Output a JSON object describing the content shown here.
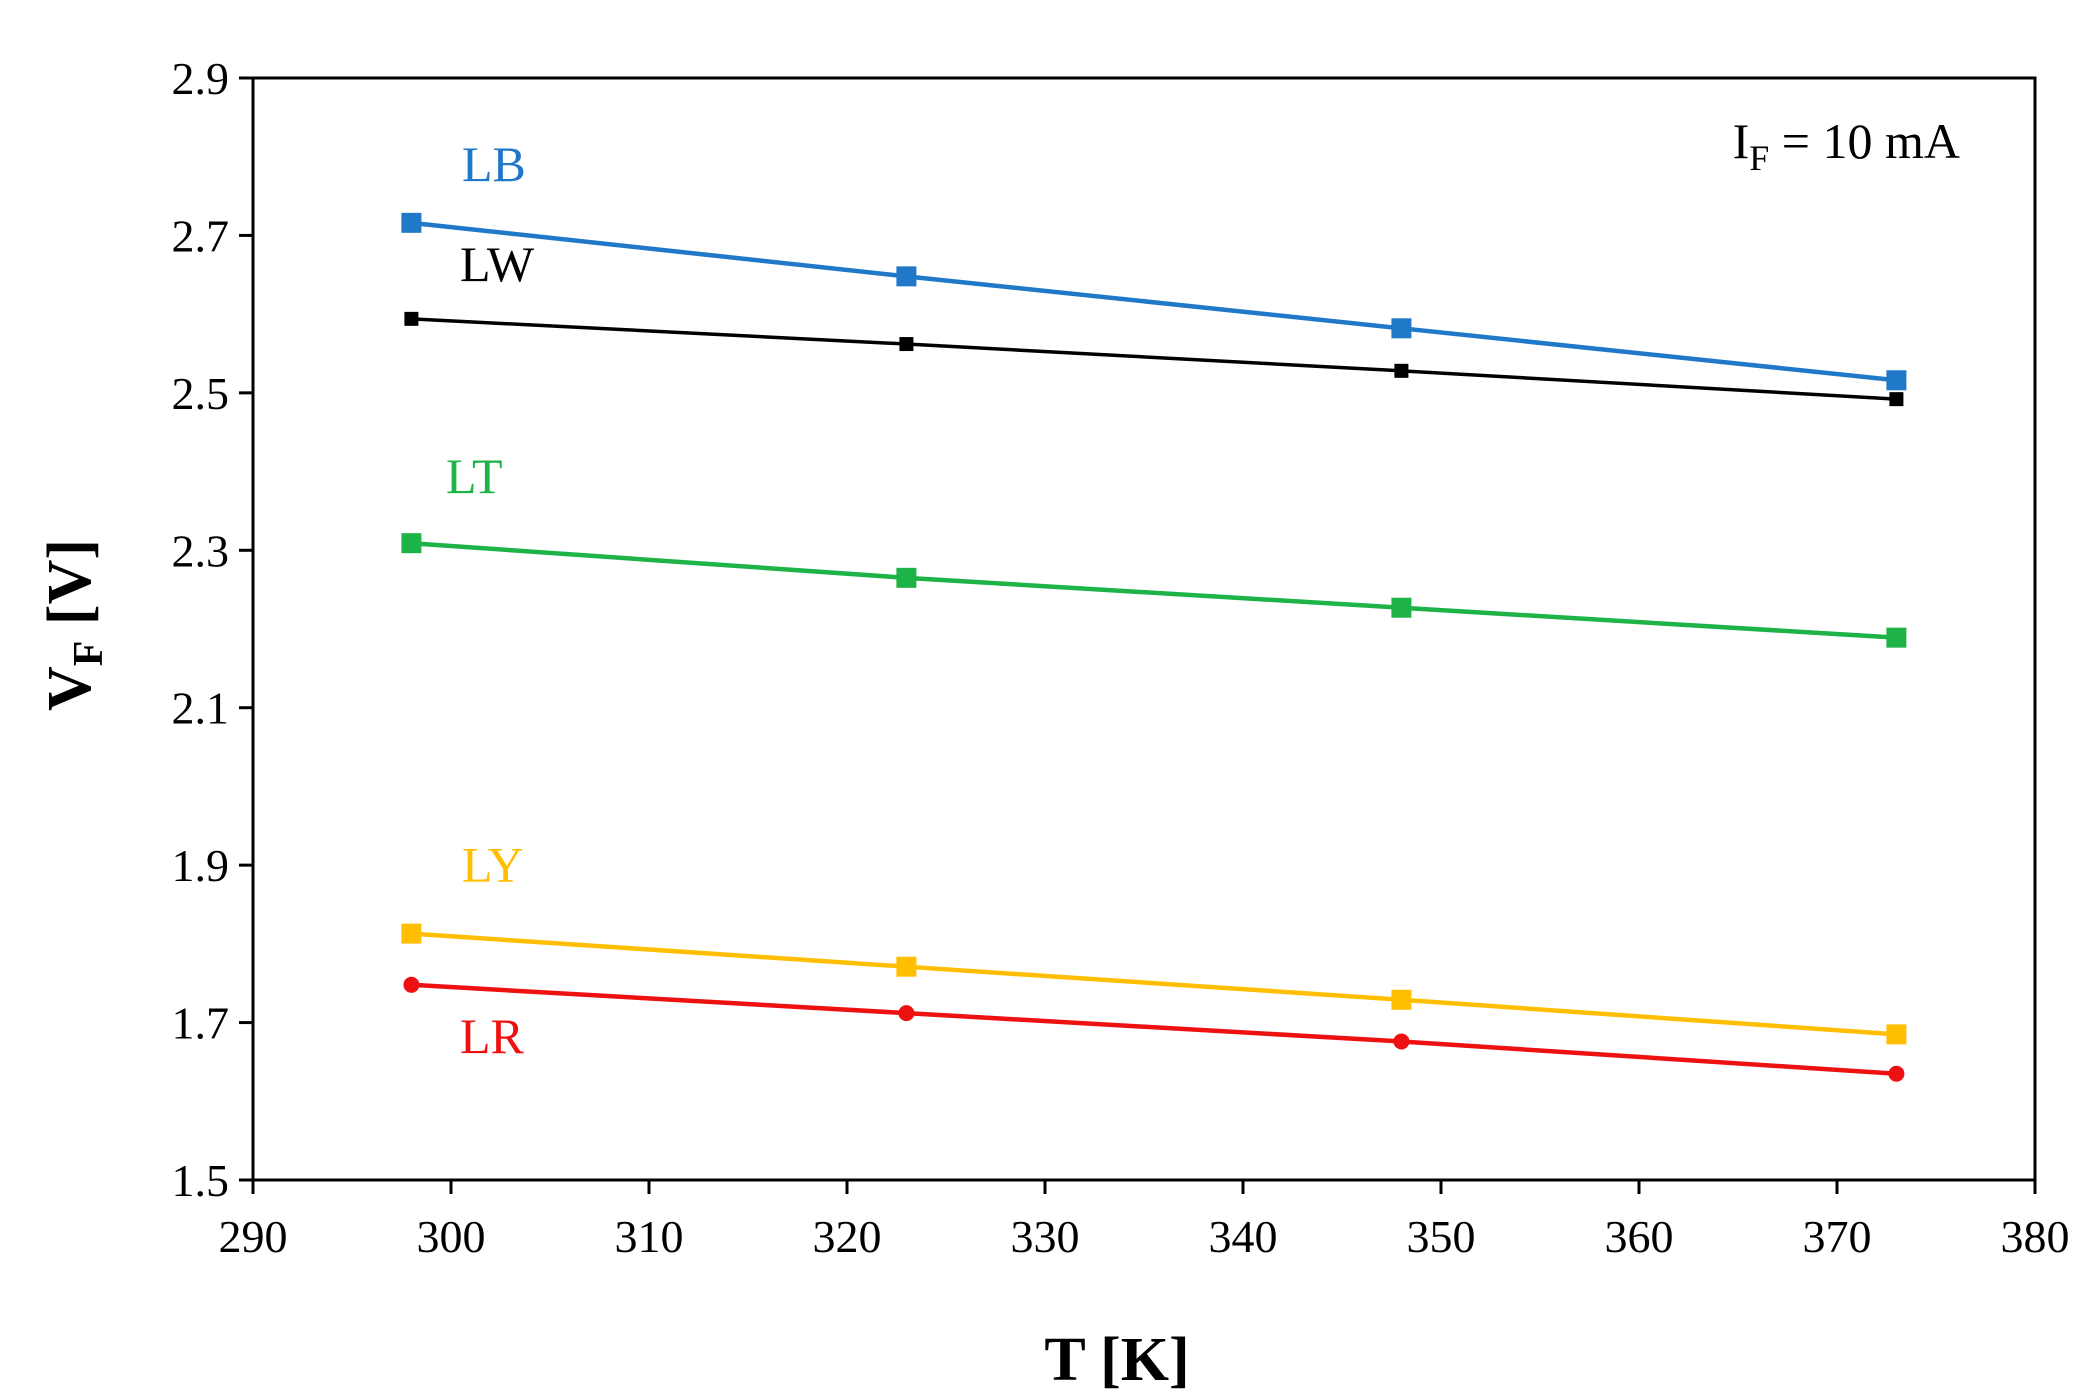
{
  "chart_data": {
    "type": "line",
    "title": "",
    "xlabel": {
      "main": "T [K]"
    },
    "ylabel": {
      "main": "V",
      "sub": "F",
      "suffix": " [V]"
    },
    "xlim": [
      290,
      380
    ],
    "ylim": [
      1.5,
      2.9
    ],
    "xticks": [
      290,
      300,
      310,
      320,
      330,
      340,
      350,
      360,
      370,
      380
    ],
    "yticks": [
      1.5,
      1.7,
      1.9,
      2.1,
      2.3,
      2.5,
      2.7,
      2.9
    ],
    "grid": false,
    "annotation": {
      "main": "I",
      "sub": "F",
      "suffix": " = 10 mA"
    },
    "x": [
      298,
      323,
      348,
      373
    ],
    "series": [
      {
        "name": "LB",
        "color": "#1f78c8",
        "marker": "square",
        "values": [
          2.716,
          2.648,
          2.582,
          2.516
        ]
      },
      {
        "name": "LW",
        "color": "#000000",
        "marker": "square-small",
        "values": [
          2.594,
          2.562,
          2.528,
          2.492
        ]
      },
      {
        "name": "LT",
        "color": "#1db346",
        "marker": "square",
        "values": [
          2.309,
          2.265,
          2.227,
          2.189
        ]
      },
      {
        "name": "LY",
        "color": "#ffbf00",
        "marker": "square",
        "values": [
          1.813,
          1.771,
          1.729,
          1.685
        ]
      },
      {
        "name": "LR",
        "color": "#ee1111",
        "marker": "circle",
        "values": [
          1.748,
          1.712,
          1.676,
          1.635
        ]
      }
    ]
  }
}
